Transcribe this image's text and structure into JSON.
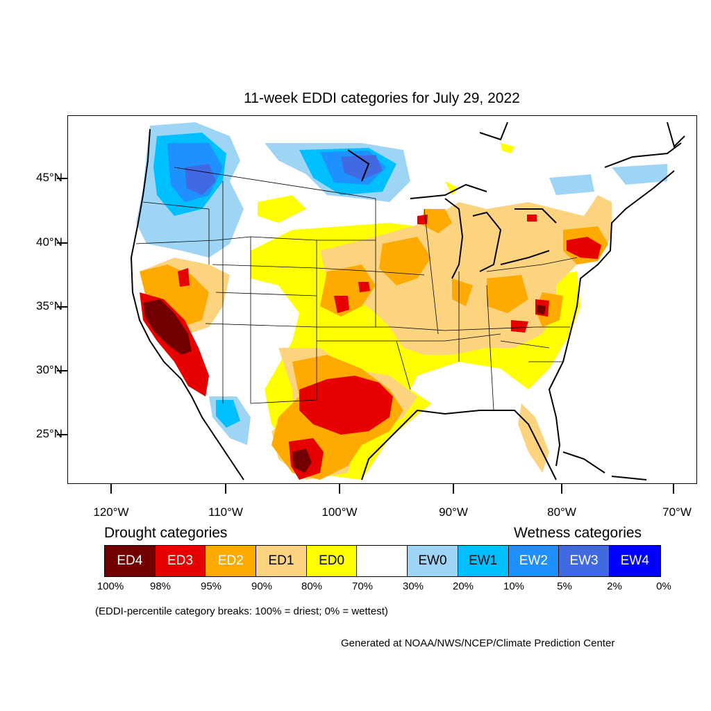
{
  "title": "11-week EDDI categories for July 29, 2022",
  "map": {
    "lat_ticks": [
      "45°N",
      "40°N",
      "35°N",
      "30°N",
      "25°N"
    ],
    "lon_ticks": [
      "120°W",
      "110°W",
      "100°W",
      "90°W",
      "80°W",
      "70°W"
    ]
  },
  "legend": {
    "drought_heading": "Drought categories",
    "wetness_heading": "Wetness categories",
    "categories": [
      {
        "label": "ED4",
        "color": "#730000",
        "text_color": "#ffffff"
      },
      {
        "label": "ED3",
        "color": "#e60000",
        "text_color": "#ffffff"
      },
      {
        "label": "ED2",
        "color": "#ffaa00",
        "text_color": "#ffffff"
      },
      {
        "label": "ED1",
        "color": "#fcd37f",
        "text_color": "#000000"
      },
      {
        "label": "ED0",
        "color": "#ffff00",
        "text_color": "#000000"
      },
      {
        "label": "",
        "color": "#ffffff",
        "text_color": "#000000"
      },
      {
        "label": "EW0",
        "color": "#9ed5f5",
        "text_color": "#000000"
      },
      {
        "label": "EW1",
        "color": "#00bfff",
        "text_color": "#000000"
      },
      {
        "label": "EW2",
        "color": "#1e90ff",
        "text_color": "#ffffff"
      },
      {
        "label": "EW3",
        "color": "#4169e1",
        "text_color": "#ffffff"
      },
      {
        "label": "EW4",
        "color": "#0000ff",
        "text_color": "#ffffff"
      }
    ],
    "breaks": [
      "100%",
      "98%",
      "95%",
      "90%",
      "80%",
      "70%",
      "30%",
      "20%",
      "10%",
      "5%",
      "2%",
      "0%"
    ]
  },
  "note": "(EDDI-percentile category breaks: 100% = driest; 0% = wettest)",
  "credit": "Generated at NOAA/NWS/NCEP/Climate Prediction Center"
}
